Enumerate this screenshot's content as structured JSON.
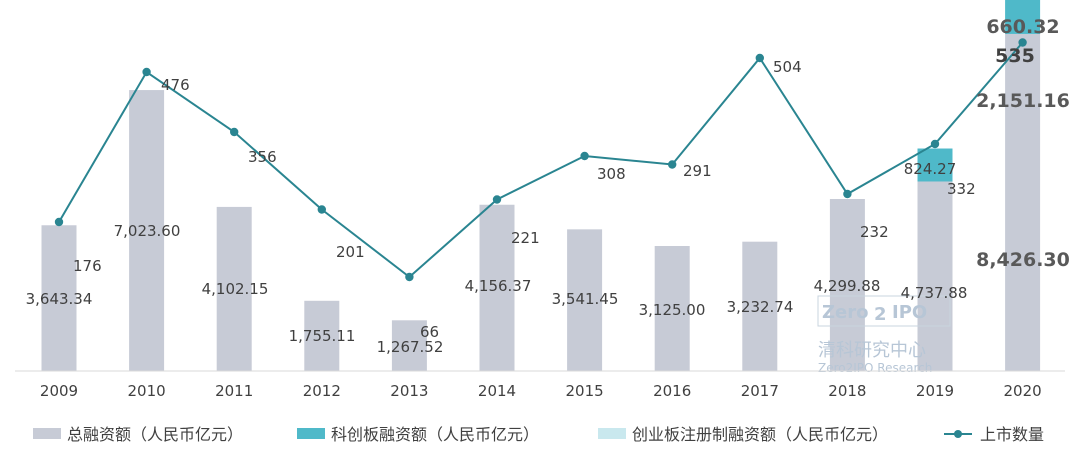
{
  "chart_data": {
    "type": "bar",
    "categories": [
      "2009",
      "2010",
      "2011",
      "2012",
      "2013",
      "2014",
      "2015",
      "2016",
      "2017",
      "2018",
      "2019",
      "2020"
    ],
    "series": [
      {
        "name": "总融资额（人民币亿元）",
        "kind": "bar",
        "color": "#c7cbd6",
        "values": [
          3643.34,
          7023.6,
          4102.15,
          1755.11,
          1267.52,
          4156.37,
          3541.45,
          3125.0,
          3232.74,
          4299.88,
          4737.88,
          8426.3
        ],
        "labels": [
          "3,643.34",
          "7,023.60",
          "4,102.15",
          "1,755.11",
          "1,267.52",
          "4,156.37",
          "3,541.45",
          "3,125.00",
          "3,232.74",
          "4,299.88",
          "4,737.88",
          "8,426.30"
        ]
      },
      {
        "name": "科创板融资额（人民币亿元）",
        "kind": "bar",
        "color": "#4fb9c9",
        "values": [
          null,
          null,
          null,
          null,
          null,
          null,
          null,
          null,
          null,
          null,
          824.27,
          2151.16
        ],
        "labels": [
          "",
          "",
          "",
          "",
          "",
          "",
          "",
          "",
          "",
          "",
          "824.27",
          "2,151.16"
        ]
      },
      {
        "name": "创业板注册制融资额（人民币亿元）",
        "kind": "bar",
        "color": "#c9e8ee",
        "values": [
          null,
          null,
          null,
          null,
          null,
          null,
          null,
          null,
          null,
          null,
          null,
          660.32
        ],
        "labels": [
          "",
          "",
          "",
          "",
          "",
          "",
          "",
          "",
          "",
          "",
          "",
          "660.32"
        ]
      },
      {
        "name": "上市数量",
        "kind": "line",
        "color": "#2a8591",
        "values": [
          176,
          476,
          356,
          201,
          66,
          221,
          308,
          291,
          504,
          232,
          332,
          535
        ],
        "labels": [
          "176",
          "476",
          "356",
          "201",
          "66",
          "221",
          "308",
          "291",
          "504",
          "232",
          "332",
          "535"
        ]
      }
    ],
    "xlabel": "",
    "ylabel": "",
    "bar_axis_range": [
      0,
      12000
    ],
    "line_axis_range": [
      0,
      600
    ],
    "grid": false,
    "legend_position": "bottom"
  },
  "watermark": {
    "brand": "Zero2IPO",
    "brand_parts": [
      "Zero",
      "2",
      "IPO"
    ],
    "cn": "清科研究中心",
    "en": "Zero2IPO Research"
  }
}
